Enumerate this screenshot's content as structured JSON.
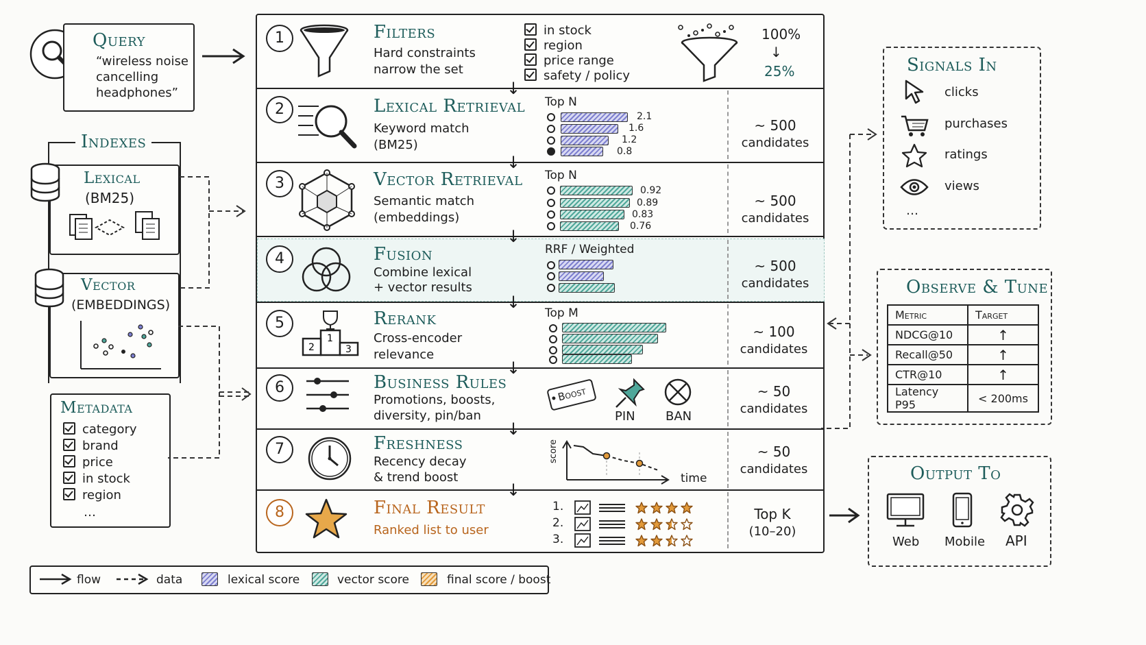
{
  "query": {
    "title": "Query",
    "text": [
      "“wireless noise",
      "cancelling",
      "headphones”"
    ]
  },
  "indexes": {
    "title": "Indexes",
    "lexical": {
      "title": "Lexical",
      "sub": "(BM25)"
    },
    "vector": {
      "title": "Vector",
      "sub": "(EMBEDDINGS)"
    }
  },
  "metadata": {
    "title": "Metadata",
    "items": [
      "category",
      "brand",
      "price",
      "in stock",
      "region",
      "…"
    ]
  },
  "stages": [
    {
      "num": "1",
      "title": "Filters",
      "desc": [
        "Hard constraints",
        "narrow the set"
      ],
      "checks": [
        "in stock",
        "region",
        "price range",
        "safety / policy"
      ],
      "pct_top": "100%",
      "pct_bottom": "25%"
    },
    {
      "num": "2",
      "title": "Lexical Retrieval",
      "desc": [
        "Keyword match",
        "(BM25)"
      ],
      "chart_label": "Top N",
      "scores": [
        "2.1",
        "1.6",
        "1.2",
        "0.8"
      ],
      "cand": [
        "~ 500",
        "candidates"
      ]
    },
    {
      "num": "3",
      "title": "Vector Retrieval",
      "desc": [
        "Semantic match",
        "(embeddings)"
      ],
      "chart_label": "Top N",
      "scores": [
        "0.92",
        "0.89",
        "0.83",
        "0.76"
      ],
      "cand": [
        "~ 500",
        "candidates"
      ]
    },
    {
      "num": "4",
      "title": "Fusion",
      "desc": [
        "Combine lexical",
        "+ vector results"
      ],
      "chart_label": "RRF / Weighted",
      "cand": [
        "~ 500",
        "candidates"
      ]
    },
    {
      "num": "5",
      "title": "Rerank",
      "desc": [
        "Cross-encoder",
        "relevance"
      ],
      "chart_label": "Top M",
      "cand": [
        "~ 100",
        "candidates"
      ]
    },
    {
      "num": "6",
      "title": "Business Rules",
      "desc": [
        "Promotions, boosts,",
        "diversity, pin/ban"
      ],
      "boost": "Boost",
      "pin": "PIN",
      "ban": "BAN",
      "cand": [
        "~ 50",
        "candidates"
      ]
    },
    {
      "num": "7",
      "title": "Freshness",
      "desc": [
        "Recency decay",
        "& trend boost"
      ],
      "y_axis": "score",
      "x_axis": "time",
      "cand": [
        "~ 50",
        "candidates"
      ]
    },
    {
      "num": "8",
      "title": "Final Result",
      "desc": [
        "Ranked list to user"
      ],
      "ranks": [
        "1.",
        "2.",
        "3."
      ],
      "stars": [
        4.5,
        2.5,
        2.5
      ],
      "cand": [
        "Top K",
        "(10–20)"
      ]
    }
  ],
  "signals": {
    "title": "Signals In",
    "items": [
      "clicks",
      "purchases",
      "ratings",
      "views",
      "…"
    ]
  },
  "observe": {
    "title": "Observe & Tune",
    "headers": [
      "Metric",
      "Target"
    ],
    "rows": [
      [
        "NDCG@10",
        "↑"
      ],
      [
        "Recall@50",
        "↑"
      ],
      [
        "CTR@10",
        "↑"
      ],
      [
        "Latency P95",
        "< 200ms"
      ]
    ]
  },
  "output": {
    "title": "Output To",
    "items": [
      "Web",
      "Mobile",
      "API"
    ]
  },
  "legend": {
    "flow": "flow",
    "data": "data",
    "lexical": "lexical score",
    "vector": "vector score",
    "final": "final score / boost"
  },
  "colors": {
    "accent": "#1d5c5a",
    "final": "#b8651d",
    "lexical": "#7d7fcf",
    "vector": "#4fa79a",
    "boost": "#e29a3a"
  }
}
